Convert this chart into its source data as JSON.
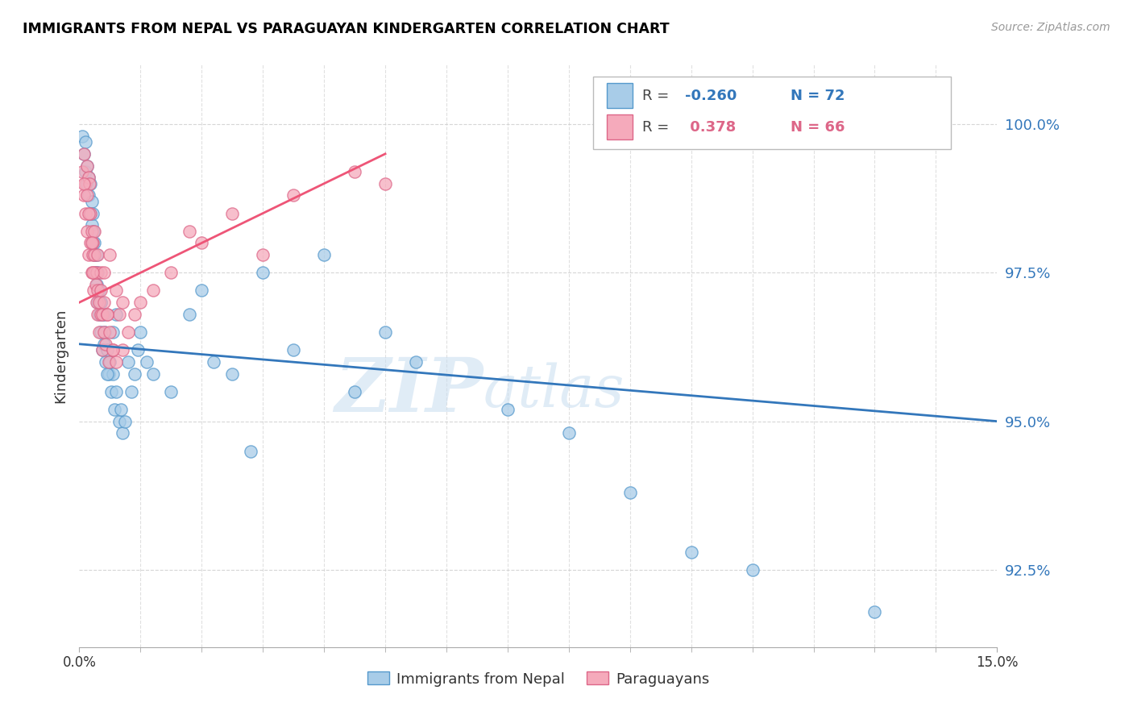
{
  "title": "IMMIGRANTS FROM NEPAL VS PARAGUAYAN KINDERGARTEN CORRELATION CHART",
  "source": "Source: ZipAtlas.com",
  "ylabel": "Kindergarten",
  "ytick_vals": [
    92.5,
    95.0,
    97.5,
    100.0
  ],
  "xlim": [
    0.0,
    15.0
  ],
  "ylim": [
    91.2,
    101.0
  ],
  "color_nepal": "#a8cce8",
  "color_nepal_edge": "#5599cc",
  "color_paraguay": "#f5aabb",
  "color_paraguay_edge": "#dd6688",
  "color_nepal_line": "#3377bb",
  "color_paraguay_line": "#ee5577",
  "watermark_zip": "ZIP",
  "watermark_atlas": "atlas",
  "nepal_x": [
    0.05,
    0.08,
    0.1,
    0.1,
    0.12,
    0.13,
    0.15,
    0.15,
    0.18,
    0.18,
    0.2,
    0.2,
    0.22,
    0.22,
    0.23,
    0.25,
    0.25,
    0.27,
    0.28,
    0.28,
    0.3,
    0.3,
    0.32,
    0.33,
    0.35,
    0.35,
    0.37,
    0.38,
    0.4,
    0.4,
    0.42,
    0.43,
    0.45,
    0.48,
    0.5,
    0.52,
    0.55,
    0.58,
    0.6,
    0.65,
    0.68,
    0.7,
    0.75,
    0.8,
    0.85,
    0.9,
    0.95,
    1.0,
    1.1,
    1.2,
    1.5,
    1.8,
    2.0,
    2.5,
    3.0,
    3.5,
    4.0,
    5.0,
    5.5,
    7.0,
    8.0,
    9.0,
    10.0,
    11.0,
    13.0,
    4.5,
    2.2,
    2.8,
    0.6,
    0.45,
    0.55,
    0.35
  ],
  "nepal_y": [
    99.8,
    99.5,
    99.7,
    99.2,
    99.0,
    99.3,
    99.1,
    98.8,
    99.0,
    98.5,
    98.7,
    98.3,
    98.5,
    98.0,
    98.2,
    98.0,
    97.8,
    97.5,
    97.8,
    97.3,
    97.5,
    97.0,
    97.2,
    96.8,
    97.0,
    96.5,
    96.8,
    96.2,
    96.8,
    96.3,
    96.5,
    96.0,
    96.2,
    95.8,
    96.0,
    95.5,
    95.8,
    95.2,
    95.5,
    95.0,
    95.2,
    94.8,
    95.0,
    96.0,
    95.5,
    95.8,
    96.2,
    96.5,
    96.0,
    95.8,
    95.5,
    96.8,
    97.2,
    95.8,
    97.5,
    96.2,
    97.8,
    96.5,
    96.0,
    95.2,
    94.8,
    93.8,
    92.8,
    92.5,
    91.8,
    95.5,
    96.0,
    94.5,
    96.8,
    95.8,
    96.5,
    97.0
  ],
  "paraguay_x": [
    0.05,
    0.07,
    0.08,
    0.1,
    0.1,
    0.12,
    0.13,
    0.15,
    0.15,
    0.17,
    0.18,
    0.18,
    0.2,
    0.2,
    0.22,
    0.22,
    0.23,
    0.25,
    0.25,
    0.27,
    0.28,
    0.28,
    0.3,
    0.3,
    0.32,
    0.33,
    0.35,
    0.35,
    0.37,
    0.38,
    0.4,
    0.4,
    0.43,
    0.45,
    0.48,
    0.5,
    0.55,
    0.6,
    0.65,
    0.7,
    0.8,
    0.9,
    1.0,
    1.2,
    1.5,
    2.0,
    2.5,
    3.5,
    5.0,
    0.25,
    0.3,
    0.35,
    0.2,
    0.15,
    0.08,
    0.6,
    0.4,
    0.5,
    4.5,
    0.12,
    1.8,
    0.7,
    3.0,
    0.45,
    0.22,
    0.55
  ],
  "paraguay_y": [
    99.2,
    99.5,
    98.8,
    99.0,
    98.5,
    99.3,
    98.2,
    99.1,
    97.8,
    99.0,
    98.0,
    98.5,
    97.5,
    98.2,
    97.8,
    98.0,
    97.2,
    97.8,
    97.5,
    97.3,
    97.0,
    97.5,
    97.2,
    96.8,
    97.0,
    96.5,
    96.8,
    97.2,
    96.2,
    96.8,
    96.5,
    97.0,
    96.3,
    96.8,
    96.0,
    96.5,
    96.2,
    96.0,
    96.8,
    96.2,
    96.5,
    96.8,
    97.0,
    97.2,
    97.5,
    98.0,
    98.5,
    98.8,
    99.0,
    98.2,
    97.8,
    97.5,
    98.0,
    98.5,
    99.0,
    97.2,
    97.5,
    97.8,
    99.2,
    98.8,
    98.2,
    97.0,
    97.8,
    96.8,
    97.5,
    96.2
  ],
  "legend_r1_val": "-0.260",
  "legend_n1": "72",
  "legend_r2_val": "0.378",
  "legend_n2": "66"
}
